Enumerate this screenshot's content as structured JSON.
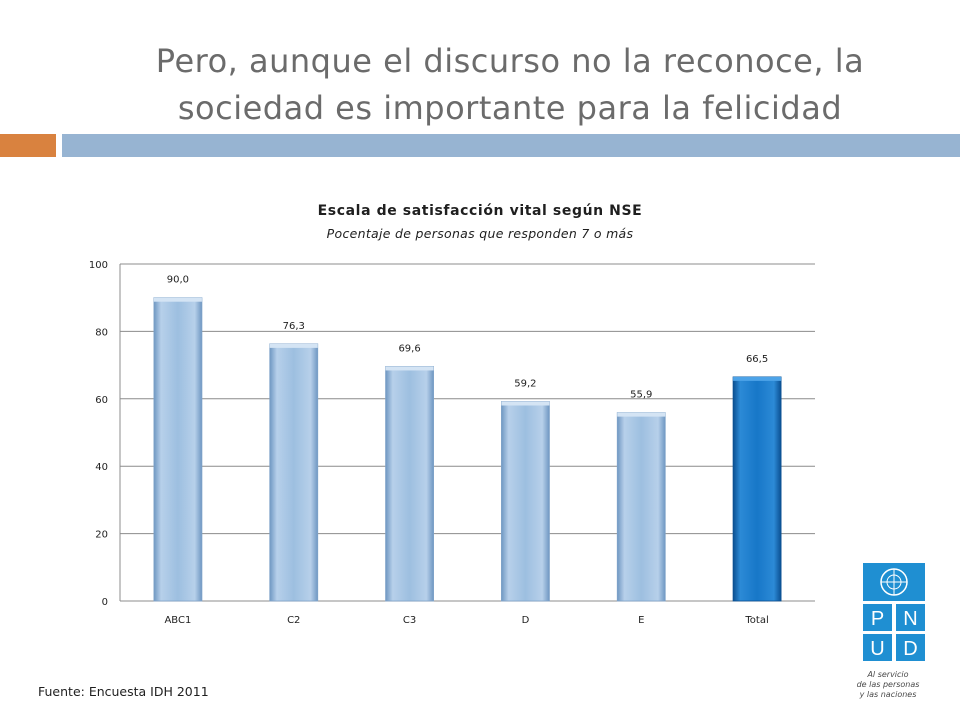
{
  "slide": {
    "title_line1": "Pero, aunque el discurso no la reconoce, la",
    "title_line2": "sociedad es importante para la felicidad",
    "footer": "Fuente: Encuesta IDH 2011"
  },
  "logo": {
    "letters": [
      "P",
      "N",
      "U",
      "D"
    ],
    "tagline_line1": "Al servicio",
    "tagline_line2": "de las personas",
    "tagline_line3": "y las naciones"
  },
  "colors": {
    "accent_orange": "#d9823f",
    "accent_blue": "#97b4d2",
    "bar_default": "#9dbfe0",
    "bar_highlight": "#1777c8",
    "logo_blue": "#1f8fd2"
  },
  "chart_data": {
    "type": "bar",
    "title": "Escala de satisfacción vital según NSE",
    "subtitle": "Pocentaje de personas que responden 7 o más",
    "categories": [
      "ABC1",
      "C2",
      "C3",
      "D",
      "E",
      "Total"
    ],
    "values": [
      90.0,
      76.3,
      69.6,
      59.2,
      55.9,
      66.5
    ],
    "value_labels": [
      "90,0",
      "76,3",
      "69,6",
      "59,2",
      "55,9",
      "66,5"
    ],
    "highlight": "Total",
    "ylim": [
      0,
      100
    ],
    "yticks": [
      0,
      20,
      40,
      60,
      80,
      100
    ],
    "grid": true,
    "legend": "none"
  }
}
